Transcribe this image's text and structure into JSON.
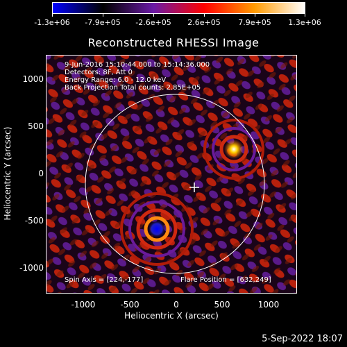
{
  "colorbar": {
    "labels": [
      "-1.3e+06",
      "-7.9e+05",
      "-2.6e+05",
      "2.6e+05",
      "7.9e+05",
      "1.3e+06"
    ],
    "colors": [
      "#0000ff",
      "#000000",
      "#6a1aa6",
      "#ff0000",
      "#ff9a00",
      "#ffffff"
    ]
  },
  "title": "Reconstructed RHESSI Image",
  "info": {
    "line1": "9-Jun-2016 15:10:44.000 to 15:14:36.000",
    "line2": "Detectors: 8F, Att 0",
    "line3": "Energy Range: 6.0 - 12.0 keV",
    "line4": "Back Projection    Total counts: 2.85E+05",
    "spin_axis": "Spin Axis = [224,-177]",
    "flare_position": "Flare Position = [632,249]"
  },
  "axes": {
    "xlabel": "Heliocentric X (arcsec)",
    "ylabel": "Heliocentric Y (arcsec)",
    "xticks": [
      "-1000",
      "-500",
      "0",
      "500",
      "1000"
    ],
    "yticks": [
      "1000",
      "500",
      "0",
      "-500",
      "-1000"
    ]
  },
  "datestamp": "5-Sep-2022 18:07"
}
